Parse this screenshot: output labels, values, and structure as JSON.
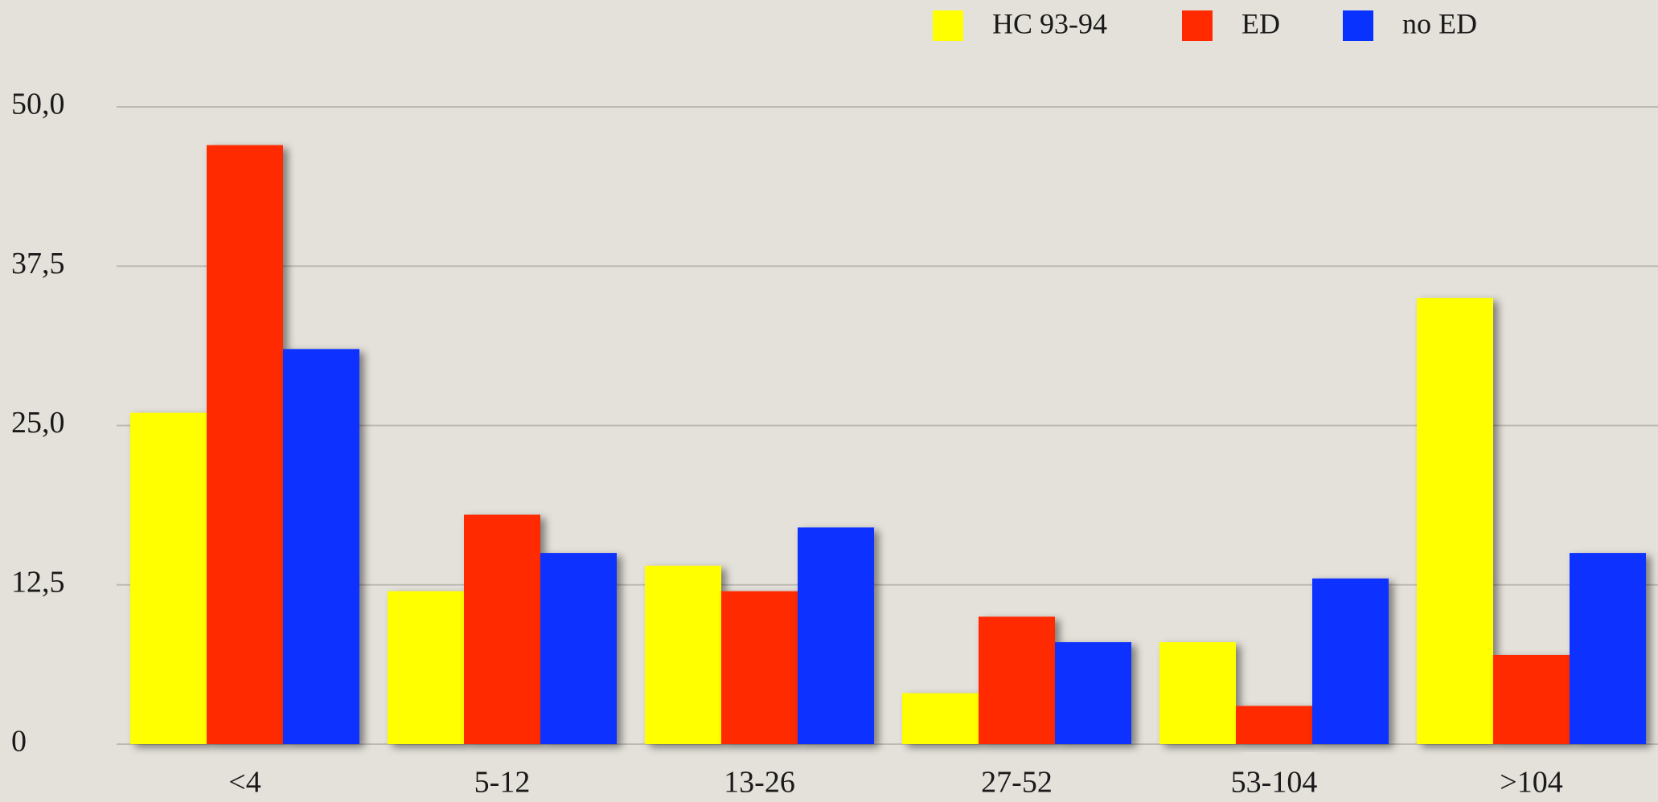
{
  "chart_data": {
    "type": "bar",
    "categories": [
      "<4",
      "5-12",
      "13-26",
      "27-52",
      "53-104",
      ">104"
    ],
    "series": [
      {
        "name": "HC 93-94",
        "color": "#ffff00",
        "values": [
          26,
          12,
          14,
          4,
          8,
          35
        ]
      },
      {
        "name": "ED",
        "color": "#ff2a00",
        "values": [
          47,
          18,
          12,
          10,
          3,
          7
        ]
      },
      {
        "name": "no ED",
        "color": "#0a32ff",
        "values": [
          31,
          15,
          17,
          8,
          13,
          15
        ]
      }
    ],
    "ylim": [
      0,
      50
    ],
    "yticks": [
      0,
      {
        "value": 12.5,
        "label": "12,5"
      },
      {
        "value": 25,
        "label": "25,0"
      },
      {
        "value": 37.5,
        "label": "37,5"
      },
      {
        "value": 50,
        "label": "50,0"
      }
    ],
    "grid": true,
    "legend": "top-right"
  }
}
